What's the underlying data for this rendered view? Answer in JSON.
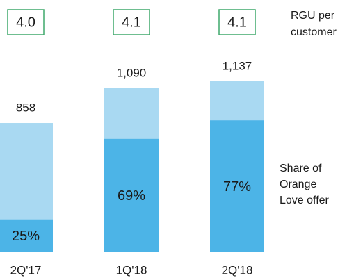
{
  "chart_data": {
    "type": "stacked-share-bar",
    "categories": [
      "2Q'17",
      "1Q'18",
      "2Q'18"
    ],
    "totals": {
      "values": [
        858,
        1090,
        1137
      ],
      "value_labels": [
        "858",
        "1,090",
        "1,137"
      ],
      "color": "#a9d9f2"
    },
    "share": {
      "name": [
        "Share of",
        "Orange",
        "Love offer"
      ],
      "values": [
        25,
        69,
        77
      ],
      "value_labels": [
        "25%",
        "69%",
        "77%"
      ],
      "color": "#4cb4e7"
    },
    "rgu": {
      "name": [
        "RGU per",
        "customer"
      ],
      "values": [
        4.0,
        4.1,
        4.1
      ],
      "value_labels": [
        "4.0",
        "4.1",
        "4.1"
      ],
      "color": "#3fa86b"
    }
  }
}
